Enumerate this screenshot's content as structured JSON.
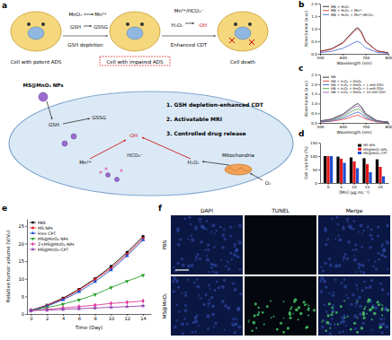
{
  "figure": {
    "panel_labels": [
      "a",
      "b",
      "c",
      "d",
      "e",
      "f"
    ]
  },
  "diagram": {
    "labels": [
      "MnO₂",
      "Mn²⁺",
      "GSH",
      "GSSG",
      "Mn²⁺/HCO₃⁻",
      "H₂O₂",
      "·OH",
      "Cell with potent ADS",
      "GSH depletion",
      "Cell with impaired ADS",
      "Enhanced CDT",
      "Cell death",
      "MS@MnO₂ NPs",
      "GSH",
      "GSSG",
      "·OH",
      "HCO₃⁻",
      "H₂O₂",
      "Mn²⁺",
      "Mitochondria",
      "O₂",
      "1. GSH depletion-enhanced CDT",
      "2. Activatable MRI",
      "3. Controlled drug release"
    ]
  },
  "chart_data": [
    {
      "type": "line",
      "x_label": "Wavelength (nm)",
      "y_label": "Absorbance (a.u.)",
      "x": [
        500,
        550,
        600,
        630,
        650,
        665,
        680,
        700,
        750,
        800
      ],
      "series": [
        {
          "name": "MB + H₂O₂",
          "color": "#000000",
          "values": [
            0.1,
            0.2,
            0.45,
            0.75,
            0.95,
            1.05,
            0.9,
            0.5,
            0.12,
            0.04
          ]
        },
        {
          "name": "MB + H₂O₂ + Mn²⁺",
          "color": "#e41a1c",
          "values": [
            0.09,
            0.18,
            0.42,
            0.7,
            0.9,
            1.0,
            0.85,
            0.48,
            0.11,
            0.04
          ]
        },
        {
          "name": "MB + H₂O₂ + Mn²⁺/HCO₃⁻",
          "color": "#1f4fd1",
          "values": [
            0.05,
            0.1,
            0.22,
            0.35,
            0.45,
            0.5,
            0.42,
            0.24,
            0.06,
            0.02
          ]
        }
      ],
      "xlim": [
        500,
        800
      ],
      "ylim": [
        0,
        2
      ],
      "xticks": [
        500,
        600,
        700,
        800
      ],
      "yticks": [
        {
          "value": 0,
          "label": "0.0"
        },
        {
          "value": 0.5,
          "label": "0.5"
        },
        {
          "value": 1,
          "label": "1.0"
        },
        {
          "value": 1.5,
          "label": "1.5"
        },
        {
          "value": 2,
          "label": "2.0"
        }
      ],
      "legend": "upper left"
    },
    {
      "type": "line",
      "x_label": "Wavelength (nm)",
      "y_label": "Absorbance (a.u.)",
      "x": [
        500,
        550,
        600,
        630,
        650,
        665,
        680,
        700,
        750,
        800
      ],
      "series": [
        {
          "name": "MB",
          "color": "#000000",
          "values": [
            0.1,
            0.2,
            0.45,
            0.72,
            0.9,
            1.0,
            0.86,
            0.48,
            0.11,
            0.04
          ]
        },
        {
          "name": "MB + H₂O₂ + MnO₂",
          "color": "#e41a1c",
          "values": [
            0.04,
            0.08,
            0.18,
            0.28,
            0.36,
            0.4,
            0.34,
            0.2,
            0.05,
            0.02
          ]
        },
        {
          "name": "MB + H₂O₂ + MnO₂ + 1 mM GSH",
          "color": "#1f4fd1",
          "values": [
            0.05,
            0.11,
            0.25,
            0.4,
            0.5,
            0.56,
            0.48,
            0.27,
            0.07,
            0.03
          ]
        },
        {
          "name": "MB + H₂O₂ + MnO₂ + 5 mM GSH",
          "color": "#2ca02c",
          "values": [
            0.07,
            0.15,
            0.33,
            0.53,
            0.66,
            0.73,
            0.63,
            0.35,
            0.09,
            0.03
          ]
        },
        {
          "name": "MB + H₂O₂ + MnO₂ + 10 mM GSH",
          "color": "#8e44ad",
          "values": [
            0.09,
            0.18,
            0.4,
            0.64,
            0.8,
            0.88,
            0.76,
            0.42,
            0.1,
            0.04
          ]
        }
      ],
      "xlim": [
        500,
        800
      ],
      "ylim": [
        0,
        2.5
      ],
      "xticks": [
        500,
        600,
        700,
        800
      ],
      "yticks": [
        {
          "value": 0,
          "label": "0.0"
        },
        {
          "value": 0.5,
          "label": "0.5"
        },
        {
          "value": 1,
          "label": "1.0"
        },
        {
          "value": 1.5,
          "label": "1.5"
        },
        {
          "value": 2,
          "label": "2.0"
        },
        {
          "value": 2.5,
          "label": "2.5"
        }
      ],
      "legend": "upper left"
    },
    {
      "type": "bar",
      "x_label": "[Mn] (μg mL⁻¹)",
      "y_label": "Cell viability (%)",
      "categories": [
        "0",
        "5",
        "10",
        "15",
        "20"
      ],
      "series": [
        {
          "name": "MS NPs",
          "color": "#000000",
          "values": [
            100,
            98,
            95,
            92,
            88
          ]
        },
        {
          "name": "MS@MnO₂ NPs",
          "color": "#e41a1c",
          "values": [
            100,
            90,
            80,
            70,
            60
          ]
        },
        {
          "name": "MS@MnO₂-CPT",
          "color": "#1f4fd1",
          "values": [
            100,
            75,
            55,
            40,
            25
          ]
        }
      ],
      "ylim": [
        0,
        150
      ],
      "yticks": [
        0,
        50,
        100,
        150
      ],
      "legend": "upper right"
    },
    {
      "type": "line",
      "x_label": "Time (Day)",
      "y_label": "Relative tumor volume (V/V₀)",
      "x": [
        0,
        2,
        4,
        6,
        8,
        10,
        12,
        14
      ],
      "series": [
        {
          "name": "PBS",
          "color": "#000000",
          "marker": "square",
          "values": [
            1,
            2.5,
            4.5,
            7,
            10,
            13.5,
            17.5,
            22
          ]
        },
        {
          "name": "MS NPs",
          "color": "#e41a1c",
          "marker": "circle",
          "values": [
            1,
            2.4,
            4.3,
            6.8,
            9.8,
            13,
            17,
            21.5
          ]
        },
        {
          "name": "Free CPT",
          "color": "#1f4fd1",
          "marker": "triangle",
          "values": [
            1,
            2.2,
            4,
            6.3,
            9.2,
            12.5,
            16.5,
            21
          ]
        },
        {
          "name": "MS@MnO₂ NPs",
          "color": "#2ca02c",
          "marker": "triangle-down",
          "values": [
            1,
            1.8,
            2.8,
            4,
            5.5,
            7.5,
            9.3,
            11
          ]
        },
        {
          "name": "2×MS@MnO₂ NPs",
          "color": "#e0389a",
          "marker": "diamond",
          "values": [
            1,
            1.3,
            1.7,
            2.1,
            2.5,
            3,
            3.3,
            3.7
          ]
        },
        {
          "name": "MS@MnO₂-CPT",
          "color": "#8e44ad",
          "marker": "star",
          "values": [
            1,
            1.1,
            1.3,
            1.5,
            1.7,
            1.9,
            2.1,
            2.3
          ]
        }
      ],
      "xlim": [
        -0.5,
        15
      ],
      "ylim": [
        0,
        27
      ],
      "xticks": [
        0,
        2,
        4,
        6,
        8,
        10,
        12,
        14
      ],
      "yticks": [
        0,
        5,
        10,
        15,
        20,
        25
      ],
      "legend": "upper left"
    }
  ],
  "images": {
    "columns": [
      "DAPI",
      "TUNEL",
      "Merge"
    ],
    "rows": [
      "PBS",
      "MS@MnO₂"
    ]
  }
}
